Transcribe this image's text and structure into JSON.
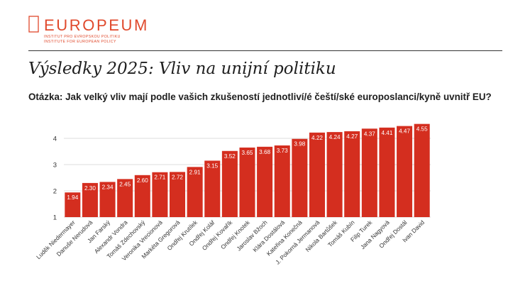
{
  "logo": {
    "wordmark": "EUROPEUM",
    "line1": "INSTITUT PRO EVROPSKOU POLITIKU",
    "line2": "INSTITUTE FOR EUROPEAN POLICY",
    "color": "#e0492c"
  },
  "page": {
    "title": "Výsledky 2025: Vliv na unijní politiku",
    "question": "Otázka: Jak velký vliv mají podle vašich zkušeností jednotliví/é čeští/ské europoslanci/kyně uvnitř EU?"
  },
  "chart_data": {
    "type": "bar",
    "bar_color": "#d42e1f",
    "ylim": [
      1,
      4.6
    ],
    "yticks": [
      1,
      2,
      3,
      4
    ],
    "grid": true,
    "categories": [
      "Luděk Niedermayer",
      "Danuše Nerudová",
      "Jan Farský",
      "Alexandr Vondra",
      "Tomáš Zdechovský",
      "Veronika Vrecionová",
      "Markéta Gregorová",
      "Ondřej Krutílek",
      "Ondřej Kolář",
      "Ondřej Kovařík",
      "Ondřej Knotek",
      "Jaroslav Bžoch",
      "Klára Dostálová",
      "Kateřina Konečná",
      "J. Pokorná Jermanová",
      "Nikola Bartůšek",
      "Tomáš Kubín",
      "Filip Turek",
      "Jana Nagyová",
      "Ondřej Dostál",
      "Ivan David"
    ],
    "values": [
      1.94,
      2.3,
      2.34,
      2.45,
      2.6,
      2.71,
      2.72,
      2.91,
      3.15,
      3.52,
      3.65,
      3.68,
      3.73,
      3.98,
      4.22,
      4.24,
      4.27,
      4.37,
      4.41,
      4.47,
      4.55
    ],
    "value_labels": [
      "1.94",
      "2.30",
      "2.34",
      "2.45",
      "2.60",
      "2.71",
      "2.72",
      "2.91",
      "3.15",
      "3.52",
      "3.65",
      "3.68",
      "3.73",
      "3.98",
      "4.22",
      "4.24",
      "4.27",
      "4.37",
      "4.41",
      "4.47",
      "4.55"
    ]
  }
}
